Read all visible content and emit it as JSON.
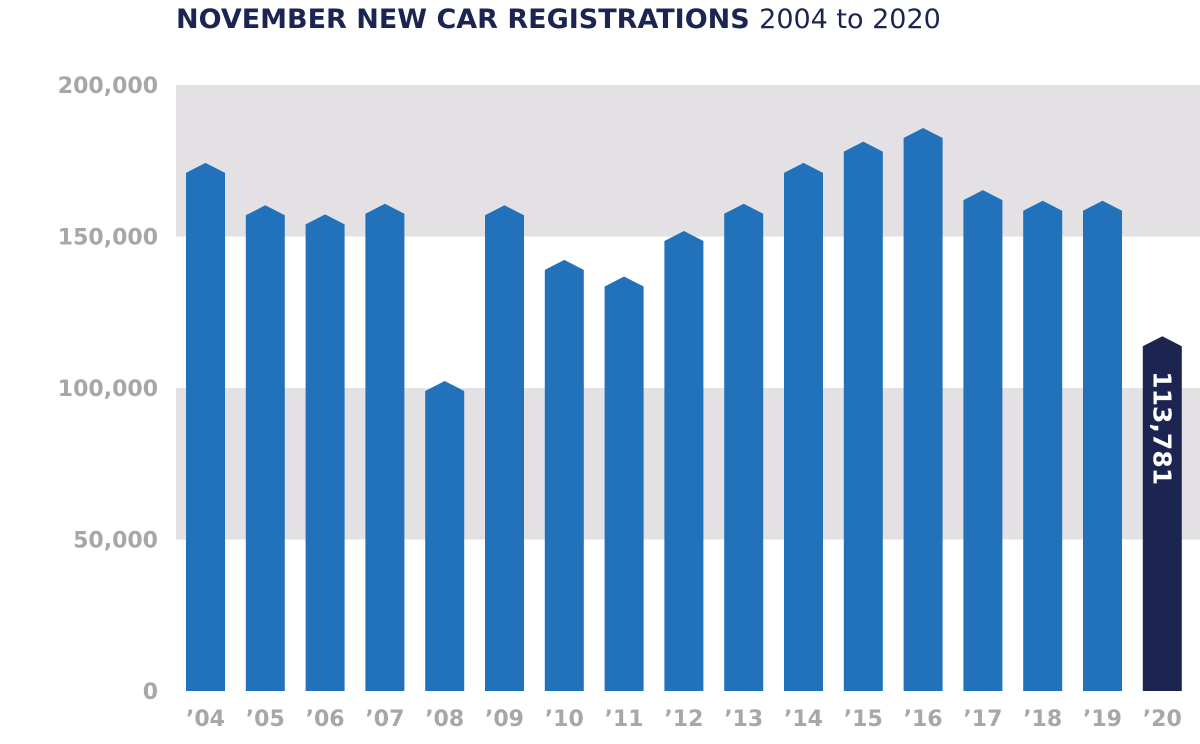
{
  "title": {
    "main": "NOVEMBER NEW CAR REGISTRATIONS",
    "sub": "2004 to 2020"
  },
  "colors": {
    "bar": "#2272bb",
    "highlight_bar": "#1c2452",
    "band": "#e3e1e3",
    "tick_text": "#a7a7a9",
    "title": "#1c2452"
  },
  "chart_data": {
    "type": "bar",
    "title": "NOVEMBER NEW CAR REGISTRATIONS 2004 to 2020",
    "xlabel": "",
    "ylabel": "",
    "ylim": [
      0,
      200000
    ],
    "y_ticks": [
      "0",
      "50,000",
      "100,000",
      "150,000",
      "200,000"
    ],
    "y_tick_values": [
      0,
      50000,
      100000,
      150000,
      200000
    ],
    "grid": "alternating horizontal bands",
    "categories": [
      "’04",
      "’05",
      "’06",
      "’07",
      "’08",
      "’09",
      "’10",
      "’11",
      "’12",
      "’13",
      "’14",
      "’15",
      "’16",
      "’17",
      "’18",
      "’19",
      "’20"
    ],
    "values": [
      171000,
      157000,
      154000,
      157500,
      99000,
      157000,
      139000,
      133500,
      148500,
      157500,
      171000,
      178000,
      182500,
      162000,
      158500,
      158500,
      113781
    ],
    "highlight_index": 16,
    "data_labels": [
      {
        "index": 16,
        "text": "113,781"
      }
    ]
  }
}
